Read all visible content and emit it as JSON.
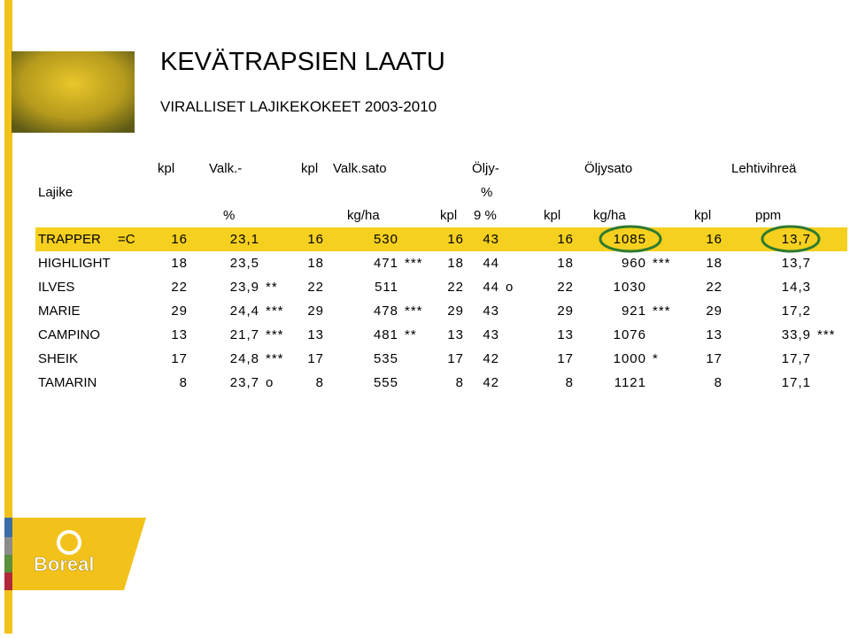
{
  "title": "KEVÄTRAPSIEN LAATU",
  "subtitle": "VIRALLISET LAJIKEKOKEET 2003-2010",
  "header": {
    "row1": [
      "kpl",
      "Valk.-",
      "kpl",
      "Valk.sato",
      "Öljy-",
      "Öljysato",
      "Lehtivihreä"
    ],
    "row2": [
      "Lajike",
      "%"
    ],
    "row3": [
      "%",
      "kg/ha",
      "kpl",
      "9 %",
      "kpl",
      "kg/ha",
      "kpl",
      "ppm"
    ]
  },
  "table": {
    "rows": [
      {
        "name": "TRAPPER",
        "note": "=C",
        "values": [
          "16",
          "23,1",
          "16",
          "530",
          "16",
          "43",
          "16",
          "1085",
          "16",
          "13,7"
        ],
        "sig": {}
      },
      {
        "name": "HIGHLIGHT",
        "values": [
          "18",
          "23,5",
          "18",
          "471",
          "18",
          "44",
          "18",
          "960",
          "18",
          "13,7"
        ],
        "sig": {
          "3": "***",
          "7": "***"
        }
      },
      {
        "name": "ILVES",
        "values": [
          "22",
          "23,9",
          "22",
          "511",
          "22",
          "44",
          "22",
          "1030",
          "22",
          "14,3"
        ],
        "sig": {
          "1": "**",
          "5": "o"
        }
      },
      {
        "name": "MARIE",
        "values": [
          "29",
          "24,4",
          "29",
          "478",
          "29",
          "43",
          "29",
          "921",
          "29",
          "17,2"
        ],
        "sig": {
          "1": "***",
          "3": "***",
          "7": "***"
        }
      },
      {
        "name": "CAMPINO",
        "values": [
          "13",
          "21,7",
          "13",
          "481",
          "13",
          "43",
          "13",
          "1076",
          "13",
          "33,9"
        ],
        "sig": {
          "1": "***",
          "3": "**",
          "9": "***"
        }
      },
      {
        "name": "SHEIK",
        "values": [
          "17",
          "24,8",
          "17",
          "535",
          "17",
          "42",
          "17",
          "1000",
          "17",
          "17,7"
        ],
        "sig": {
          "1": "***",
          "7": "*"
        }
      },
      {
        "name": "TAMARIN",
        "values": [
          "8",
          "23,7",
          "8",
          "555",
          "8",
          "42",
          "8",
          "1121",
          "8",
          "17,1"
        ],
        "sig": {
          "1": "o"
        }
      }
    ]
  },
  "logo": "Boreal"
}
